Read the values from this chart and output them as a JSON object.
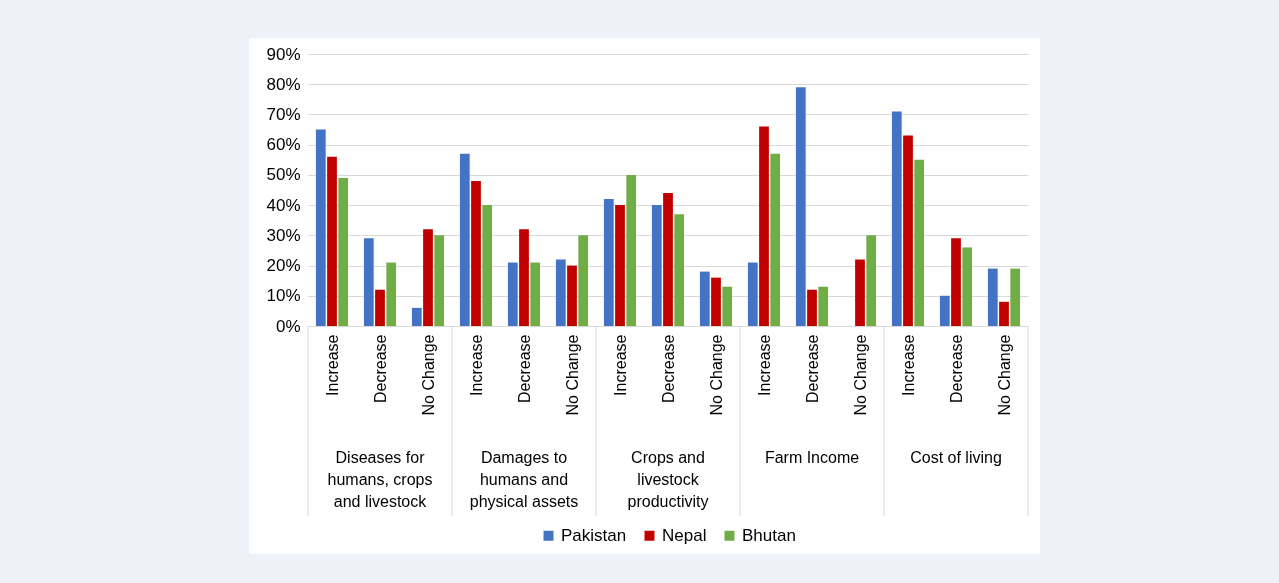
{
  "chart_data": {
    "type": "bar",
    "categories": [
      "Increase",
      "Decrease",
      "No Change",
      "Increase",
      "Decrease",
      "No Change",
      "Increase",
      "Decrease",
      "No Change",
      "Increase",
      "Decrease",
      "No Change",
      "Increase",
      "Decrease",
      "No Change"
    ],
    "annotations": [
      "Diseases for humans, crops and livestock",
      "Damages to humans and physical assets",
      "Crops and livestock productivity",
      "Farm Income",
      "Cost of living"
    ],
    "series": [
      {
        "name": "Pakistan",
        "color": "#4472c4",
        "values": [
          65,
          29,
          6,
          57,
          21,
          22,
          42,
          40,
          18,
          21,
          79,
          null,
          71,
          10,
          19
        ]
      },
      {
        "name": "Nepal",
        "color": "#c00000",
        "values": [
          56,
          12,
          32,
          48,
          32,
          20,
          40,
          44,
          16,
          66,
          12,
          22,
          63,
          29,
          8
        ]
      },
      {
        "name": "Bhutan",
        "color": "#70ad47",
        "values": [
          49,
          21,
          30,
          40,
          21,
          30,
          50,
          37,
          13,
          57,
          13,
          30,
          55,
          26,
          19
        ]
      }
    ],
    "ylim": [
      0,
      90
    ],
    "yticks": [
      {
        "value": 0,
        "label": "0%"
      },
      {
        "value": 10,
        "label": "10%"
      },
      {
        "value": 20,
        "label": "20%"
      },
      {
        "value": 30,
        "label": "30%"
      },
      {
        "value": 40,
        "label": "40%"
      },
      {
        "value": 50,
        "label": "50%"
      },
      {
        "value": 60,
        "label": "60%"
      },
      {
        "value": 70,
        "label": "70%"
      },
      {
        "value": 80,
        "label": "80%"
      },
      {
        "value": 90,
        "label": "90%"
      }
    ],
    "grid": "y",
    "legend": "bottom"
  }
}
